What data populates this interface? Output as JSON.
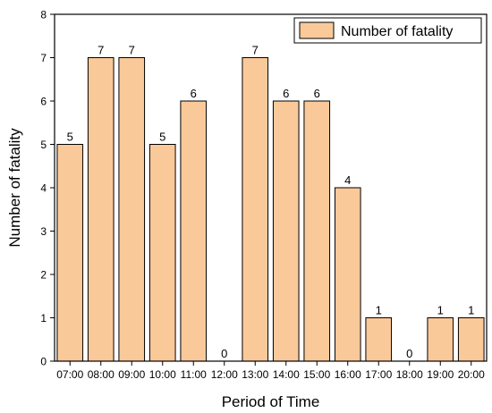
{
  "chart_data": {
    "type": "bar",
    "title": "",
    "xlabel": "Period of Time",
    "ylabel": "Number of fatality",
    "categories": [
      "07:00",
      "08:00",
      "09:00",
      "10:00",
      "11:00",
      "12:00",
      "13:00",
      "14:00",
      "15:00",
      "16:00",
      "17:00",
      "18:00",
      "19:00",
      "20:00"
    ],
    "series": [
      {
        "name": "Number of fatality",
        "values": [
          5,
          7,
          7,
          5,
          6,
          0,
          7,
          6,
          6,
          4,
          1,
          0,
          1,
          1
        ],
        "color": "#FAC99A",
        "edge_color": "#000000"
      }
    ],
    "ylim": [
      0,
      8
    ],
    "yticks": [
      "0",
      "1",
      "2",
      "3",
      "4",
      "5",
      "6",
      "7",
      "8"
    ],
    "grid": false,
    "legend_position": "top-right",
    "show_data_labels": true
  }
}
